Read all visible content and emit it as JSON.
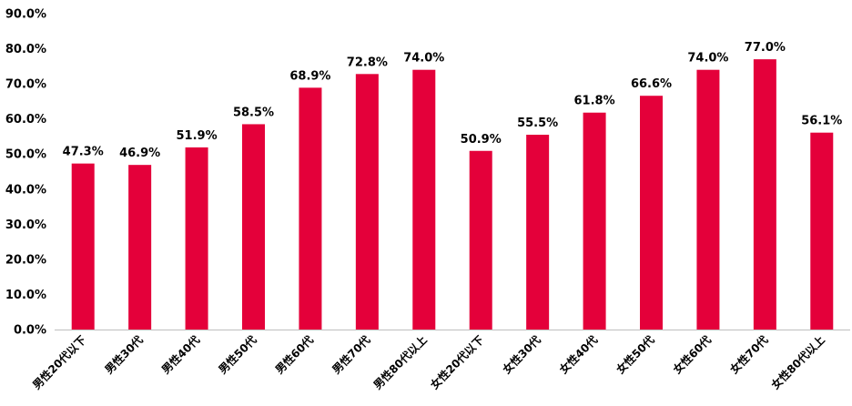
{
  "chart_data": {
    "type": "bar",
    "categories": [
      "男性20代以下",
      "男性30代",
      "男性40代",
      "男性50代",
      "男性60代",
      "男性70代",
      "男性80代以上",
      "女性20代以下",
      "女性30代",
      "女性40代",
      "女性50代",
      "女性60代",
      "女性70代",
      "女性80代以上"
    ],
    "values": [
      47.3,
      46.9,
      51.9,
      58.5,
      68.9,
      72.8,
      74.0,
      50.9,
      55.5,
      61.8,
      66.6,
      74.0,
      77.0,
      56.1
    ],
    "data_labels": [
      "47.3%",
      "46.9%",
      "51.9%",
      "58.5%",
      "68.9%",
      "72.8%",
      "74.0%",
      "50.9%",
      "55.5%",
      "61.8%",
      "66.6%",
      "74.0%",
      "77.0%",
      "56.1%"
    ],
    "ylim": [
      0,
      90
    ],
    "yticks": [
      "0.0%",
      "10.0%",
      "20.0%",
      "30.0%",
      "40.0%",
      "50.0%",
      "60.0%",
      "70.0%",
      "80.0%",
      "90.0%"
    ],
    "grid": false,
    "bar_color": "#e4003a",
    "title": "",
    "xlabel": "",
    "ylabel": ""
  }
}
